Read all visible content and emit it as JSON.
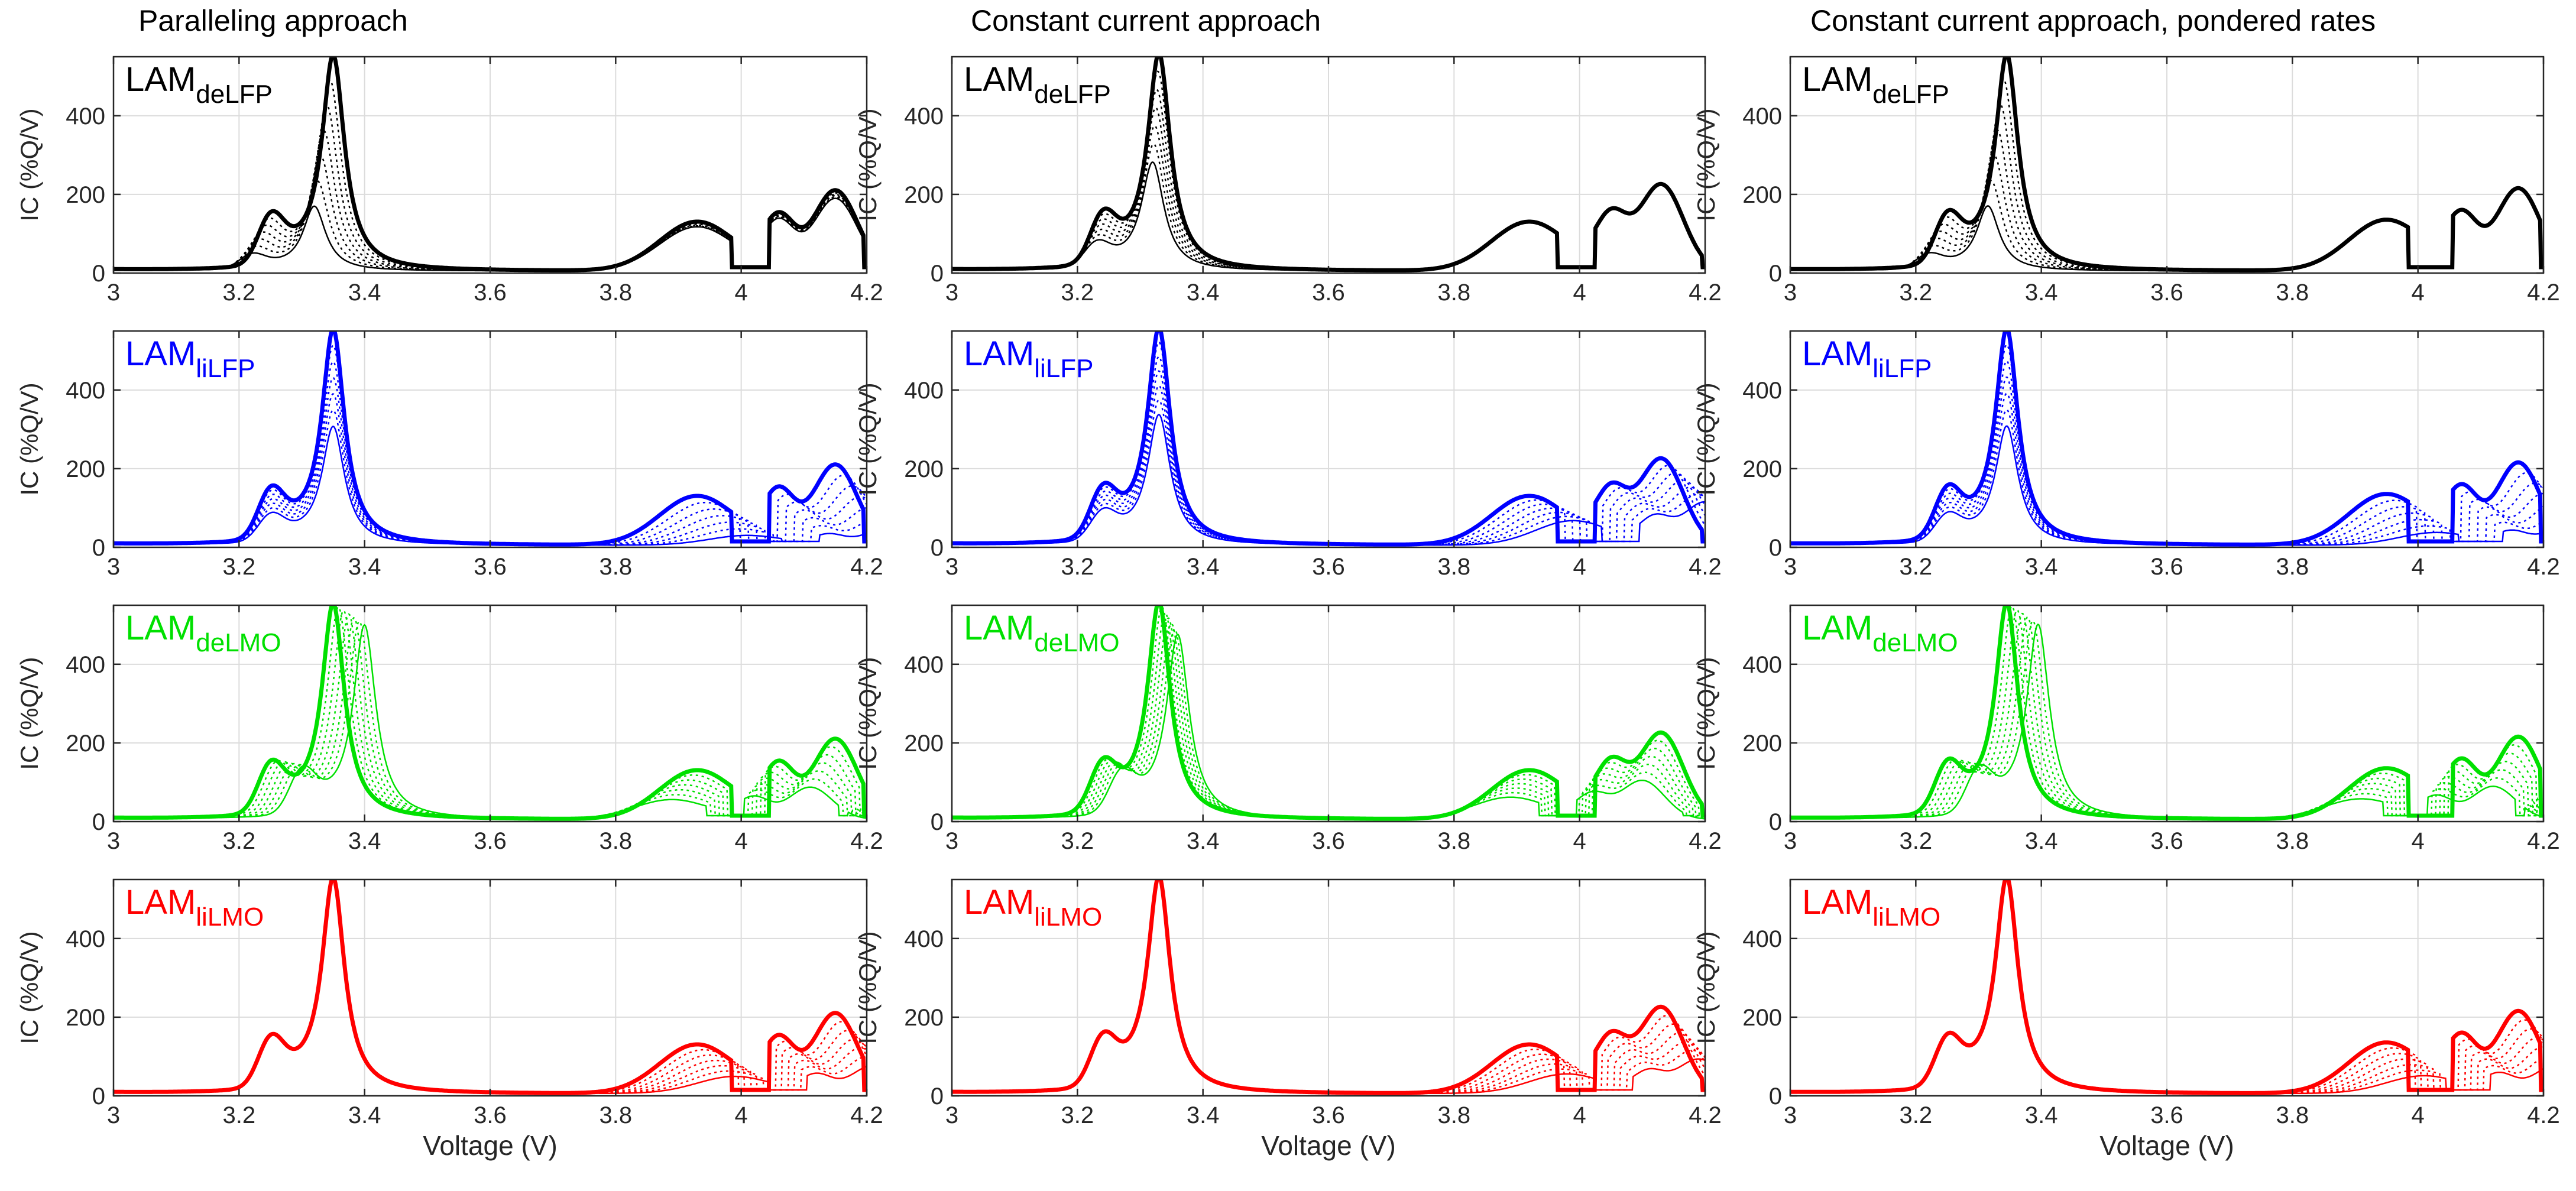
{
  "figure": {
    "column_titles": [
      "Paralleling approach",
      "Constant current approach",
      "Constant current approach, pondered rates"
    ],
    "row_labels": [
      {
        "main": "LAM",
        "sub": "deLFP",
        "color": "#000000"
      },
      {
        "main": "LAM",
        "sub": "liLFP",
        "color": "#0000ff"
      },
      {
        "main": "LAM",
        "sub": "deLMO",
        "color": "#00e000"
      },
      {
        "main": "LAM",
        "sub": "liLMO",
        "color": "#ff0000"
      }
    ],
    "ylabel": "IC (%Q/V)",
    "xlabel": "Voltage (V)"
  },
  "chart_data": {
    "type": "line",
    "grid": true,
    "xlim": [
      3,
      4.2
    ],
    "ylim": [
      0,
      550
    ],
    "xticks": [
      3,
      3.2,
      3.4,
      3.6,
      3.8,
      4,
      4.2
    ],
    "xtick_labels": [
      "3",
      "3.2",
      "3.4",
      "3.6",
      "3.8",
      "4",
      "4.2"
    ],
    "yticks": [
      0,
      200,
      400
    ],
    "ytick_labels": [
      "0",
      "200",
      "400"
    ],
    "xlabel": "Voltage (V)",
    "ylabel": "IC (%Q/V)",
    "columns": [
      {
        "title": "Paralleling approach",
        "base": {
          "baseline": 5,
          "peaks": [
            [
              3.35,
              545,
              0.022
            ],
            [
              3.25,
              110,
              0.02
            ],
            [
              3.29,
              35,
              0.03
            ],
            [
              3.93,
              125,
              0.06
            ],
            [
              4.15,
              205,
              0.035
            ],
            [
              4.06,
              130,
              0.025
            ]
          ],
          "gaps": [
            [
              3.985,
              4.045
            ],
            [
              4.195,
              4.21
            ]
          ]
        },
        "rows": [
          {
            "kind": "stretch",
            "steps": 6,
            "lfp": 0.5,
            "lmo": 0.3,
            "fshift": -0.03,
            "eshift": 0.0,
            "ffinal": [
              -0.03,
              0.3
            ],
            "efinal": [
              0.0,
              0.9
            ]
          },
          {
            "kind": "stretch",
            "steps": 6,
            "lfp": 0.0,
            "lmo": 0.6,
            "fshift": 0.0,
            "eshift": 0.07,
            "ffinal": [
              0.0,
              0.55
            ],
            "efinal": [
              0.08,
              0.2
            ]
          },
          {
            "kind": "stretch",
            "steps": 6,
            "lfp": 1.2,
            "lmo": 0.0,
            "fshift": 0.04,
            "eshift": -0.04,
            "ffinal": [
              0.05,
              0.9
            ],
            "efinal": [
              -0.04,
              0.4
            ]
          },
          {
            "kind": "stretch",
            "steps": 6,
            "lfp": 0.0,
            "lmo": 0.8,
            "fshift": 0.0,
            "eshift": 0.05,
            "ffinal": [
              0.0,
              1.0
            ],
            "efinal": [
              0.06,
              0.35
            ]
          }
        ]
      },
      {
        "title": "Constant current approach",
        "base": {
          "baseline": 5,
          "peaks": [
            [
              3.33,
              545,
              0.022
            ],
            [
              3.24,
              110,
              0.02
            ],
            [
              3.28,
              35,
              0.03
            ],
            [
              3.92,
              125,
              0.06
            ],
            [
              4.13,
              220,
              0.035
            ],
            [
              4.05,
              130,
              0.025
            ]
          ],
          "gaps": [
            [
              3.965,
              4.025
            ],
            [
              4.195,
              4.21
            ]
          ]
        },
        "rows": [
          {
            "kind": "stretch",
            "steps": 6,
            "lfp": 0.4,
            "lmo": 0.0,
            "fshift": -0.015,
            "eshift": 0.0,
            "ffinal": [
              -0.01,
              0.5
            ],
            "efinal": [
              0.0,
              1.0
            ]
          },
          {
            "kind": "stretch",
            "steps": 6,
            "lfp": 0.0,
            "lmo": 0.5,
            "fshift": 0.0,
            "eshift": 0.06,
            "ffinal": [
              0.0,
              0.6
            ],
            "efinal": [
              0.07,
              0.5
            ]
          },
          {
            "kind": "stretch",
            "steps": 6,
            "lfp": 1.1,
            "lmo": 0.0,
            "fshift": 0.03,
            "eshift": -0.03,
            "ffinal": [
              0.03,
              0.85
            ],
            "efinal": [
              -0.03,
              0.45
            ]
          },
          {
            "kind": "stretch",
            "steps": 6,
            "lfp": 0.0,
            "lmo": 0.7,
            "fshift": 0.0,
            "eshift": 0.05,
            "ffinal": [
              0.0,
              1.0
            ],
            "efinal": [
              0.06,
              0.4
            ]
          }
        ]
      },
      {
        "title": "Constant current approach, pondered rates",
        "base": {
          "baseline": 5,
          "peaks": [
            [
              3.345,
              545,
              0.022
            ],
            [
              3.25,
              110,
              0.02
            ],
            [
              3.29,
              35,
              0.03
            ],
            [
              3.95,
              130,
              0.06
            ],
            [
              4.16,
              210,
              0.035
            ],
            [
              4.07,
              130,
              0.025
            ]
          ],
          "gaps": [
            [
              3.985,
              4.055
            ],
            [
              4.195,
              4.21
            ]
          ]
        },
        "rows": [
          {
            "kind": "stretch",
            "steps": 6,
            "lfp": 0.5,
            "lmo": 0.0,
            "fshift": -0.03,
            "eshift": 0.0,
            "ffinal": [
              -0.03,
              0.3
            ],
            "efinal": [
              0.0,
              1.0
            ]
          },
          {
            "kind": "stretch",
            "steps": 6,
            "lfp": 0.0,
            "lmo": 0.6,
            "fshift": 0.0,
            "eshift": 0.07,
            "ffinal": [
              0.0,
              0.55
            ],
            "efinal": [
              0.08,
              0.25
            ]
          },
          {
            "kind": "stretch",
            "steps": 6,
            "lfp": 1.2,
            "lmo": 0.0,
            "fshift": 0.04,
            "eshift": -0.04,
            "ffinal": [
              0.05,
              0.9
            ],
            "efinal": [
              -0.04,
              0.4
            ]
          },
          {
            "kind": "stretch",
            "steps": 6,
            "lfp": 0.0,
            "lmo": 0.8,
            "fshift": 0.0,
            "eshift": 0.05,
            "ffinal": [
              0.0,
              1.0
            ],
            "efinal": [
              0.06,
              0.35
            ]
          }
        ]
      }
    ]
  }
}
